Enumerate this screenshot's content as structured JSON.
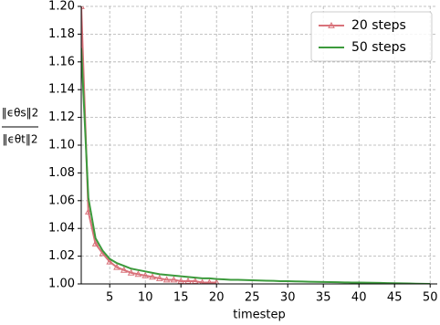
{
  "chart_data": {
    "type": "line",
    "xlabel": "timestep",
    "ylabel_numerator": "‖ϵθs‖2",
    "ylabel_denominator": "‖ϵθt‖2",
    "xlim": [
      1,
      51
    ],
    "ylim": [
      1.0,
      1.2
    ],
    "xticks": [
      5,
      10,
      15,
      20,
      25,
      30,
      35,
      40,
      45,
      50
    ],
    "yticks": [
      {
        "value": 1.0,
        "label": "1.00"
      },
      {
        "value": 1.02,
        "label": "1.02"
      },
      {
        "value": 1.04,
        "label": "1.04"
      },
      {
        "value": 1.06,
        "label": "1.06"
      },
      {
        "value": 1.08,
        "label": "1.08"
      },
      {
        "value": 1.1,
        "label": "1.10"
      },
      {
        "value": 1.12,
        "label": "1.12"
      },
      {
        "value": 1.14,
        "label": "1.14"
      },
      {
        "value": 1.16,
        "label": "1.16"
      },
      {
        "value": 1.18,
        "label": "1.18"
      },
      {
        "value": 1.2,
        "label": "1.20"
      }
    ],
    "grid": true,
    "legend": "upper right",
    "series": [
      {
        "name": "20 steps",
        "color": "#d9727a",
        "marker": "triangle",
        "x": [
          1,
          2,
          3,
          4,
          5,
          6,
          7,
          8,
          9,
          10,
          11,
          12,
          13,
          14,
          15,
          16,
          17,
          18,
          19,
          20
        ],
        "values": [
          1.2,
          1.052,
          1.029,
          1.022,
          1.016,
          1.012,
          1.01,
          1.008,
          1.007,
          1.006,
          1.005,
          1.004,
          1.003,
          1.003,
          1.002,
          1.002,
          1.002,
          1.001,
          1.001,
          1.001
        ]
      },
      {
        "name": "50 steps",
        "color": "#3c9a3c",
        "x": [
          1,
          2,
          3,
          4,
          5,
          6,
          7,
          8,
          9,
          10,
          11,
          12,
          13,
          14,
          15,
          16,
          17,
          18,
          19,
          20,
          21,
          22,
          23,
          24,
          25,
          26,
          27,
          28,
          29,
          30,
          31,
          32,
          33,
          34,
          35,
          36,
          37,
          38,
          39,
          40,
          41,
          42,
          43,
          44,
          45,
          46,
          47,
          48,
          49,
          50
        ],
        "values": [
          1.17,
          1.062,
          1.033,
          1.024,
          1.018,
          1.015,
          1.013,
          1.011,
          1.01,
          1.009,
          1.008,
          1.007,
          1.0065,
          1.006,
          1.0055,
          1.005,
          1.0045,
          1.004,
          1.004,
          1.0035,
          1.0033,
          1.003,
          1.003,
          1.0028,
          1.0026,
          1.0025,
          1.0023,
          1.0022,
          1.002,
          1.002,
          1.0018,
          1.0017,
          1.0016,
          1.0015,
          1.0014,
          1.0013,
          1.0012,
          1.0011,
          1.001,
          1.001,
          1.0009,
          1.0008,
          1.0007,
          1.0006,
          1.0005,
          1.0004,
          1.0003,
          1.0002,
          1.0001,
          1.0
        ]
      }
    ]
  }
}
